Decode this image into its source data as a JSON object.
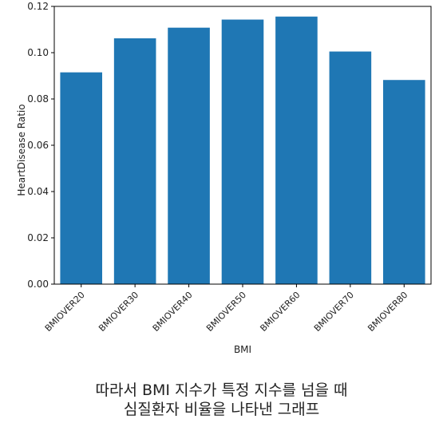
{
  "chart_data": {
    "type": "bar",
    "categories": [
      "BMIOVER20",
      "BMIOVER30",
      "BMIOVER40",
      "BMIOVER50",
      "BMIOVER60",
      "BMIOVER70",
      "BMIOVER80"
    ],
    "values": [
      0.0915,
      0.1062,
      0.1108,
      0.1143,
      0.1156,
      0.1005,
      0.0882
    ],
    "xlabel": "BMI",
    "ylabel": "HeartDisease Ratio",
    "ylim": [
      0,
      0.12
    ],
    "yticks": [
      "0.00",
      "0.02",
      "0.04",
      "0.06",
      "0.08",
      "0.10",
      "0.12"
    ],
    "bar_color": "#1f77b4",
    "grid": false
  },
  "caption": {
    "line1": "따라서 BMI 지수가 특정 지수를 넘을 때",
    "line2": "심질환자 비율을 나타낸 그래프"
  }
}
